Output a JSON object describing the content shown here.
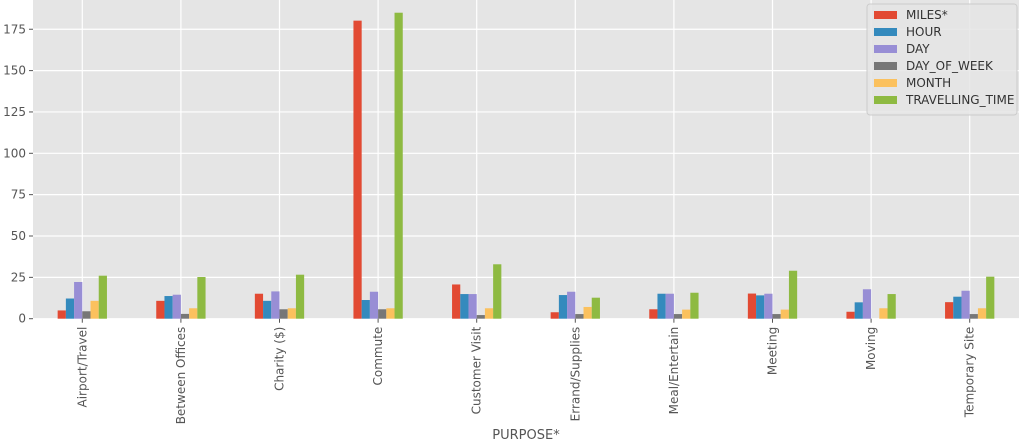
{
  "chart_data": {
    "type": "bar",
    "title": "",
    "xlabel": "PURPOSE*",
    "ylabel": "",
    "ylim": [
      0,
      193
    ],
    "yticks": [
      0,
      25,
      50,
      75,
      100,
      125,
      150,
      175
    ],
    "grid": true,
    "legend_position": "upper right",
    "categories": [
      "Airport/Travel",
      "Between Offices",
      "Charity ($)",
      "Commute",
      "Customer Visit",
      "Errand/Supplies",
      "Meal/Entertain",
      "Meeting",
      "Moving",
      "Temporary Site"
    ],
    "series": [
      {
        "name": "MILES*",
        "color": "#E24A33",
        "values": [
          5.0,
          10.8,
          15.1,
          180.2,
          20.7,
          3.9,
          5.7,
          15.2,
          4.2,
          10.0
        ]
      },
      {
        "name": "HOUR",
        "color": "#348ABD",
        "values": [
          12.2,
          13.7,
          10.8,
          11.3,
          14.9,
          14.3,
          15.1,
          14.1,
          9.9,
          13.3
        ]
      },
      {
        "name": "DAY",
        "color": "#988ED5",
        "values": [
          22.2,
          14.5,
          16.5,
          16.3,
          14.9,
          16.3,
          15.1,
          15.1,
          17.8,
          16.9
        ]
      },
      {
        "name": "DAY_OF_WEEK",
        "color": "#777777",
        "values": [
          4.5,
          2.9,
          5.7,
          5.7,
          2.2,
          2.8,
          2.8,
          2.8,
          0.0,
          2.8
        ]
      },
      {
        "name": "MONTH",
        "color": "#FBC15E",
        "values": [
          10.8,
          6.3,
          6.3,
          6.3,
          6.3,
          7.1,
          5.5,
          5.5,
          6.3,
          6.3
        ]
      },
      {
        "name": "TRAVELLING_TIME",
        "color": "#8EBA42",
        "values": [
          26.0,
          25.2,
          26.6,
          185.0,
          32.9,
          12.7,
          15.7,
          29.0,
          14.9,
          25.4
        ]
      }
    ]
  },
  "style": {
    "plot_background": "#E5E5E5",
    "grid_color": "#FFFFFF",
    "tick_label_color": "#555555",
    "legend_background": "#E5E5E5",
    "legend_border": "#CCCCCC"
  }
}
